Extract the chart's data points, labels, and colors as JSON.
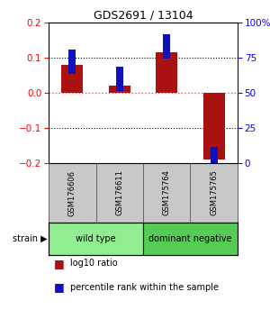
{
  "title": "GDS2691 / 13104",
  "samples": [
    "GSM176606",
    "GSM176611",
    "GSM175764",
    "GSM175765"
  ],
  "log10_ratio": [
    0.08,
    0.02,
    0.115,
    -0.19
  ],
  "percentile_rank": [
    72,
    60,
    83,
    3
  ],
  "groups": [
    {
      "name": "wild type",
      "samples": [
        0,
        1
      ],
      "color": "#90ee90"
    },
    {
      "name": "dominant negative",
      "samples": [
        2,
        3
      ],
      "color": "#55cc55"
    }
  ],
  "ylim": [
    -0.2,
    0.2
  ],
  "yticks_left": [
    -0.2,
    -0.1,
    0.0,
    0.1,
    0.2
  ],
  "yticks_right": [
    0,
    25,
    50,
    75,
    100
  ],
  "bar_color_red": "#aa1111",
  "bar_color_blue": "#1111bb",
  "zero_line_color": "#ff4444",
  "label_strain": "strain",
  "legend_red": "log10 ratio",
  "legend_blue": "percentile rank within the sample",
  "sample_box_color": "#c8c8c8",
  "sample_box_edge": "#888888",
  "red_bar_width": 0.45,
  "blue_square_size": 0.07,
  "figsize": [
    3.0,
    3.54
  ],
  "dpi": 100
}
